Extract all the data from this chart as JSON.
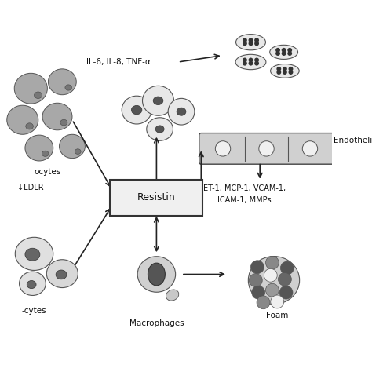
{
  "title": "",
  "bg_color": "#ffffff",
  "colors": {
    "background_color": "#ffffff",
    "cell_fill": "#d8d8d8",
    "cell_dark": "#555555",
    "cell_nucleus": "#444444",
    "cell_outline": "#333333",
    "arrow": "#222222",
    "box_fill": "#f0f0f0",
    "box_edge": "#333333",
    "text": "#111111",
    "endothelial_fill": "#cccccc",
    "platelet_fill": "#e0e0e0"
  },
  "labels": {
    "il6": "IL-6, IL-8, TNF-α",
    "ldlr": "↓LDLR",
    "ocytes_top": "ocytes",
    "cytes_bot": "-cytes",
    "endothelia": "Endotheli",
    "et1_line1": "ET-1, MCP-1, VCAM-1,",
    "et1_line2": "ICAM-1, MMPs",
    "macrophages": "Macrophages",
    "foam": "Foam"
  }
}
